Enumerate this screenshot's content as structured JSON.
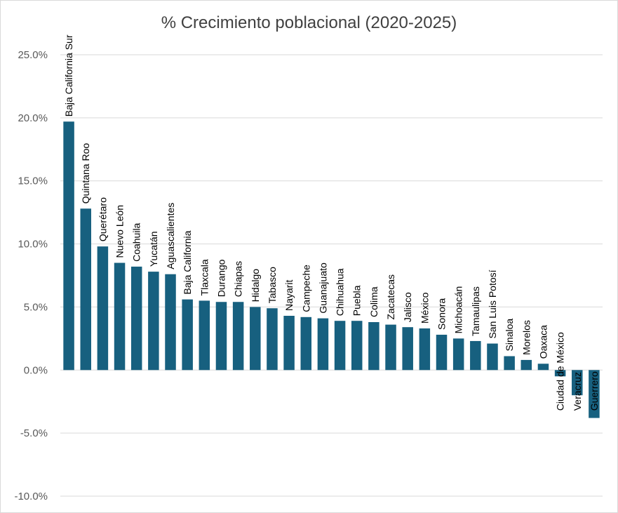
{
  "chart_data": {
    "type": "bar",
    "title": "% Crecimiento poblacional (2020-2025)",
    "xlabel": "",
    "ylabel": "",
    "ylim": [
      -10,
      25
    ],
    "yticks": [
      25,
      20,
      15,
      10,
      5,
      0,
      -5,
      -10
    ],
    "ytick_labels": [
      "25.0%",
      "20.0%",
      "15.0%",
      "10.0%",
      "5.0%",
      "0.0%",
      "-5.0%",
      "-10.0%"
    ],
    "grid": true,
    "legend": "none",
    "bar_color": "#17607f",
    "categories": [
      "Baja California Sur",
      "Quintana Roo",
      "Querétaro",
      "Nuevo León",
      "Coahuila",
      "Yucatán",
      "Aguascalientes",
      "Baja California",
      "Tlaxcala",
      "Durango",
      "Chiapas",
      "Hidalgo",
      "Tabasco",
      "Nayarit",
      "Campeche",
      "Guanajuato",
      "Chihuahua",
      "Puebla",
      "Colima",
      "Zacatecas",
      "Jalisco",
      "México",
      "Sonora",
      "Michoacán",
      "Tamaulipas",
      "San Luis Potosí",
      "Sinaloa",
      "Morelos",
      "Oaxaca",
      "Ciudad de México",
      "Veracruz",
      "Guerrero"
    ],
    "values": [
      19.7,
      12.8,
      9.8,
      8.5,
      8.2,
      7.8,
      7.6,
      5.6,
      5.5,
      5.4,
      5.4,
      5.0,
      4.9,
      4.3,
      4.2,
      4.1,
      3.9,
      3.9,
      3.8,
      3.6,
      3.4,
      3.3,
      2.8,
      2.5,
      2.3,
      2.1,
      1.1,
      0.8,
      0.5,
      -0.5,
      -2.0,
      -3.8
    ]
  }
}
